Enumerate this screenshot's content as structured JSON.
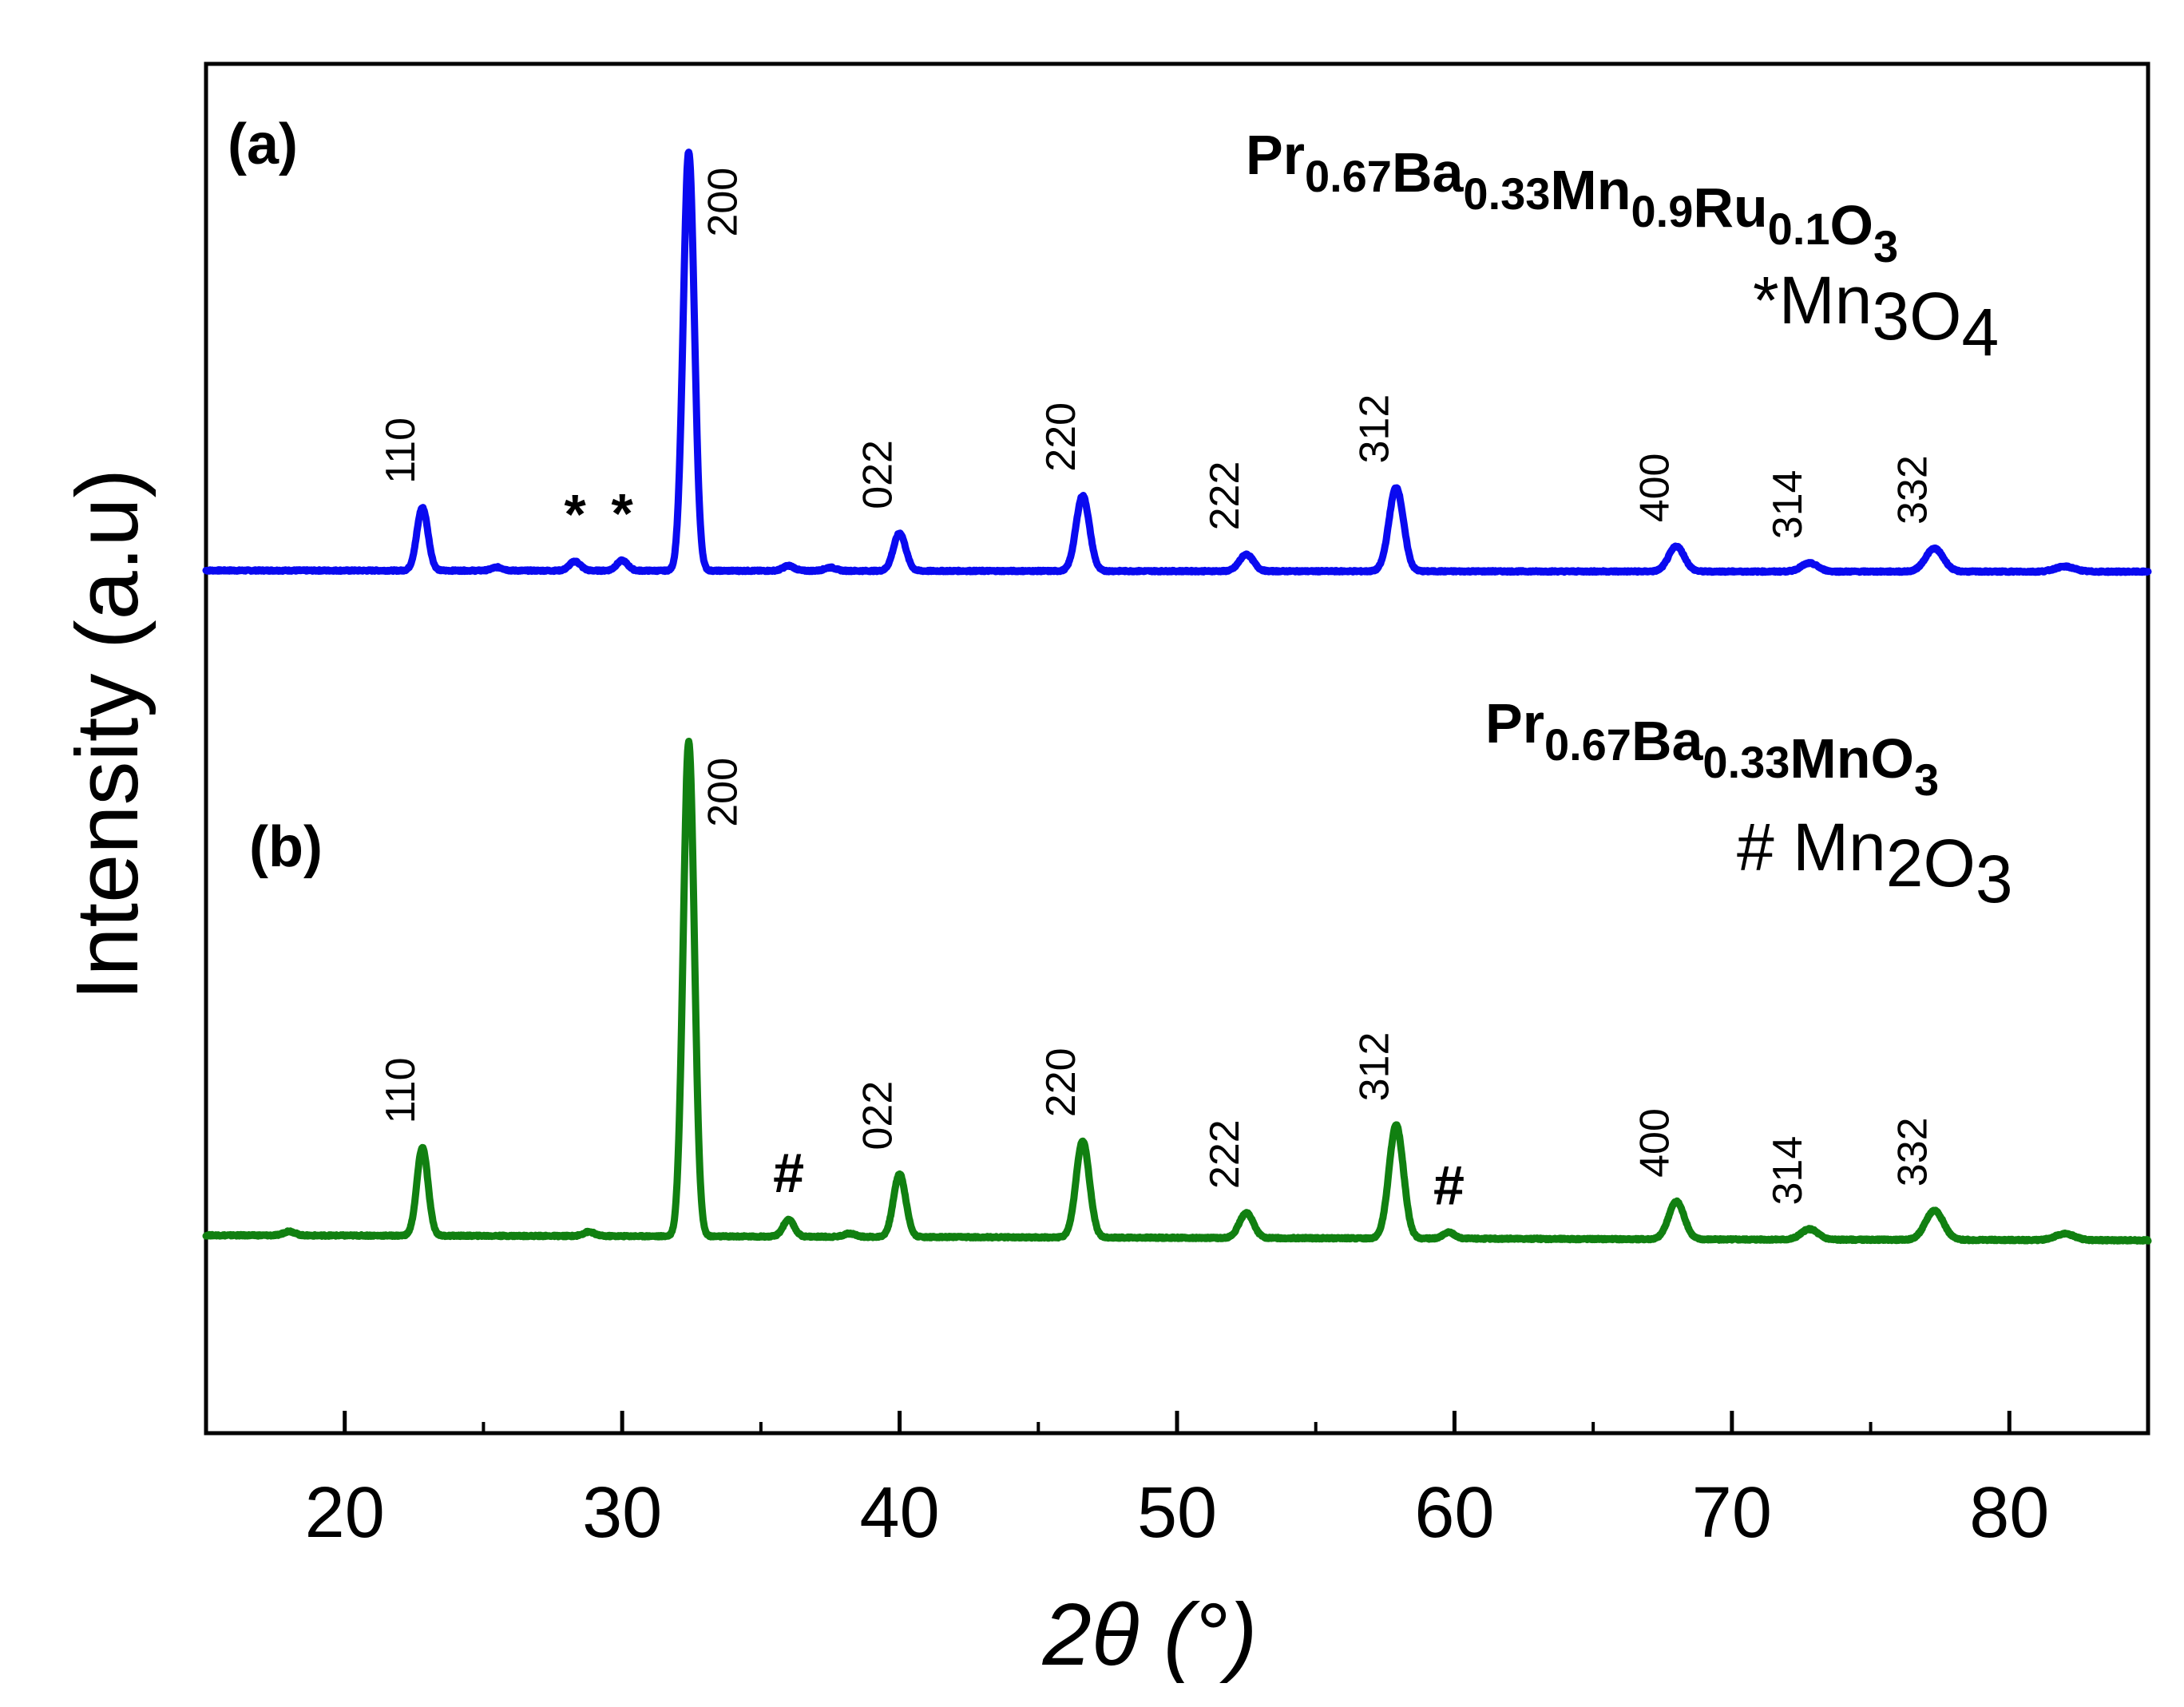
{
  "chart_data": {
    "type": "line",
    "title": "",
    "xlabel": "2θ (°)",
    "ylabel": "Intensity (a.u)",
    "xlim": [
      15,
      85
    ],
    "xticks": [
      20,
      30,
      40,
      50,
      60,
      70,
      80
    ],
    "yticks": [],
    "grid": false,
    "series": [
      {
        "name": "Pr0.67Ba0.33Mn0.9Ru0.1O3",
        "panel": "(a)",
        "color": "#0a0af0",
        "formula_parts": [
          [
            "Pr",
            "0.67"
          ],
          [
            "Ba",
            "0.33"
          ],
          [
            "Mn",
            "0.9"
          ],
          [
            "Ru",
            "0.1"
          ],
          [
            "O",
            "3"
          ]
        ],
        "impurity_legend": {
          "mark": "*",
          "species": [
            [
              "Mn",
              "3"
            ],
            [
              "O",
              "4"
            ]
          ]
        },
        "baseline": [
          [
            15,
            2.0
          ],
          [
            30,
            1.95
          ],
          [
            50,
            1.85
          ],
          [
            70,
            1.75
          ],
          [
            85,
            1.72
          ]
        ],
        "peaks": [
          {
            "x": 22.8,
            "h": 15,
            "w": 0.2,
            "label": "110"
          },
          {
            "x": 32.4,
            "h": 100,
            "w": 0.2,
            "label": "200"
          },
          {
            "x": 40.0,
            "h": 9,
            "w": 0.22,
            "label": "022"
          },
          {
            "x": 46.6,
            "h": 18,
            "w": 0.24,
            "label": "220"
          },
          {
            "x": 52.5,
            "h": 4,
            "w": 0.25,
            "label": "222"
          },
          {
            "x": 57.9,
            "h": 20,
            "w": 0.26,
            "label": "312"
          },
          {
            "x": 68.0,
            "h": 6,
            "w": 0.28,
            "label": "400"
          },
          {
            "x": 72.8,
            "h": 2,
            "w": 0.3,
            "label": "314"
          },
          {
            "x": 77.3,
            "h": 5.5,
            "w": 0.32,
            "label": "332"
          },
          {
            "x": 82.0,
            "h": 1.2,
            "w": 0.35,
            "label": ""
          },
          {
            "x": 28.3,
            "h": 2.2,
            "w": 0.2,
            "label": "",
            "impurity": "*"
          },
          {
            "x": 30.0,
            "h": 2.4,
            "w": 0.2,
            "label": "",
            "impurity": "*"
          },
          {
            "x": 25.5,
            "h": 0.8,
            "w": 0.2,
            "label": ""
          },
          {
            "x": 36.0,
            "h": 1.2,
            "w": 0.2,
            "label": ""
          },
          {
            "x": 37.5,
            "h": 0.8,
            "w": 0.2,
            "label": ""
          }
        ]
      },
      {
        "name": "Pr0.67Ba0.33MnO3",
        "panel": "(b)",
        "color": "#118011",
        "formula_parts": [
          [
            "Pr",
            "0.67"
          ],
          [
            "Ba",
            "0.33"
          ],
          [
            "MnO",
            "3"
          ]
        ],
        "impurity_legend": {
          "mark": "#",
          "species": [
            [
              "Mn",
              "2"
            ],
            [
              "O",
              "3"
            ]
          ]
        },
        "baseline": [
          [
            15,
            -156.6
          ],
          [
            30,
            -156.8
          ],
          [
            50,
            -157.2
          ],
          [
            70,
            -157.6
          ],
          [
            85,
            -157.8
          ]
        ],
        "peaks": [
          {
            "x": 22.8,
            "h": 21,
            "w": 0.2,
            "label": "110"
          },
          {
            "x": 32.4,
            "h": 118,
            "w": 0.2,
            "label": "200"
          },
          {
            "x": 40.0,
            "h": 15,
            "w": 0.22,
            "label": "022"
          },
          {
            "x": 46.6,
            "h": 23,
            "w": 0.24,
            "label": "220"
          },
          {
            "x": 52.5,
            "h": 6,
            "w": 0.25,
            "label": "222"
          },
          {
            "x": 57.9,
            "h": 27,
            "w": 0.26,
            "label": "312"
          },
          {
            "x": 68.0,
            "h": 9,
            "w": 0.28,
            "label": "400"
          },
          {
            "x": 72.8,
            "h": 2.5,
            "w": 0.3,
            "label": "314"
          },
          {
            "x": 77.3,
            "h": 7,
            "w": 0.32,
            "label": "332"
          },
          {
            "x": 82.0,
            "h": 1.5,
            "w": 0.35,
            "label": ""
          },
          {
            "x": 36.0,
            "h": 4,
            "w": 0.2,
            "label": "",
            "impurity": "#"
          },
          {
            "x": 59.8,
            "h": 1.5,
            "w": 0.2,
            "label": "",
            "impurity": "#"
          },
          {
            "x": 18.0,
            "h": 1.0,
            "w": 0.2,
            "label": ""
          },
          {
            "x": 28.8,
            "h": 1.0,
            "w": 0.2,
            "label": ""
          },
          {
            "x": 38.2,
            "h": 0.8,
            "w": 0.2,
            "label": ""
          }
        ]
      }
    ],
    "annotations": [
      "(a)",
      "(b)",
      "*",
      "*",
      "#",
      "#"
    ]
  }
}
